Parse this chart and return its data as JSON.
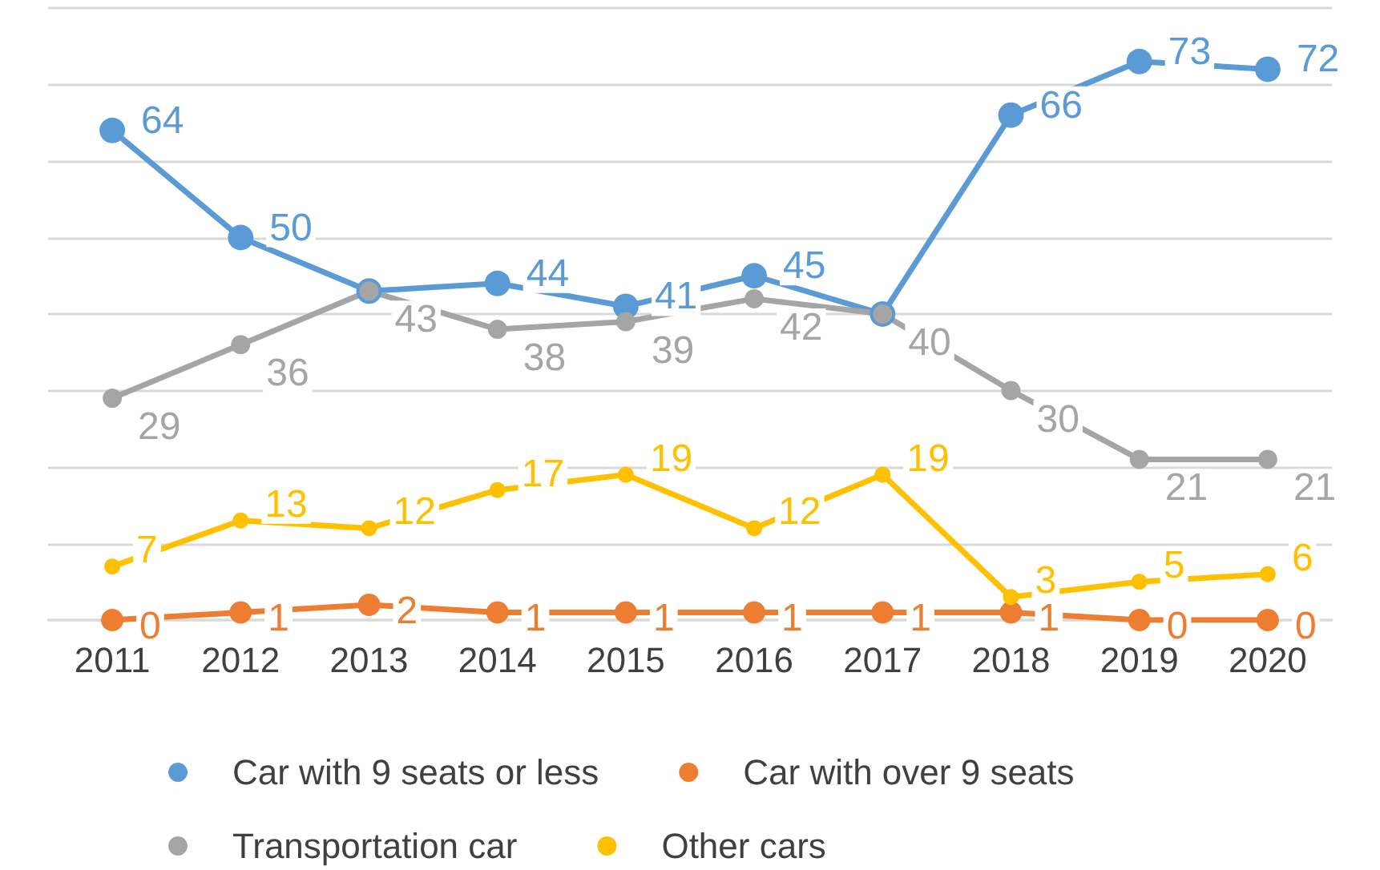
{
  "chart_data": {
    "type": "line",
    "categories": [
      "2011",
      "2012",
      "2013",
      "2014",
      "2015",
      "2016",
      "2017",
      "2018",
      "2019",
      "2020"
    ],
    "series": [
      {
        "name": "Car with 9 seats or less",
        "color": "#5b9bd5",
        "values": [
          64,
          50,
          43,
          44,
          41,
          45,
          40,
          66,
          73,
          72
        ],
        "value_labels": [
          "64",
          "50",
          null,
          "44",
          "41",
          "45",
          null,
          "66",
          "73",
          "72"
        ]
      },
      {
        "name": "Car with over 9 seats",
        "color": "#ed7d31",
        "values": [
          0,
          1,
          2,
          1,
          1,
          1,
          1,
          1,
          0,
          0
        ],
        "value_labels": [
          "0",
          "1",
          "2",
          "1",
          "1",
          "1",
          "1",
          "1",
          "0",
          "0"
        ]
      },
      {
        "name": "Transportation car",
        "color": "#a5a5a5",
        "values": [
          29,
          36,
          43,
          38,
          39,
          42,
          40,
          30,
          21,
          21
        ],
        "value_labels": [
          "29",
          "36",
          "43",
          "38",
          "39",
          "42",
          "40",
          "30",
          "21",
          "21"
        ]
      },
      {
        "name": "Other cars",
        "color": "#ffc000",
        "values": [
          7,
          13,
          12,
          17,
          19,
          12,
          19,
          3,
          5,
          6
        ],
        "value_labels": [
          "7",
          "13",
          "12",
          "17",
          "19",
          "12",
          "19",
          "3",
          "5",
          "6"
        ]
      }
    ],
    "ylim": [
      0,
      80
    ],
    "yticks": [
      {
        "value": 0,
        "label": null
      },
      {
        "value": 10,
        "label": null
      },
      {
        "value": 20,
        "label": null
      },
      {
        "value": 30,
        "label": null
      },
      {
        "value": 40,
        "label": null
      },
      {
        "value": 50,
        "label": null
      },
      {
        "value": 60,
        "label": null
      },
      {
        "value": 70,
        "label": null
      },
      {
        "value": 80,
        "label": null
      }
    ],
    "tick_labels": "x",
    "grid": "y",
    "legend": "bottom",
    "marker": "circle",
    "line_style": "solid"
  }
}
